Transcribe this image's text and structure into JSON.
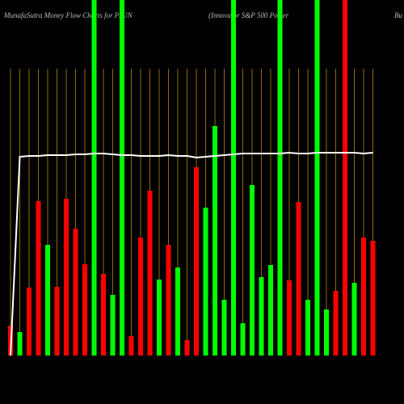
{
  "chart_data": {
    "type": "bar",
    "title": "MunafaSutra  Money Flow  Charts for PJUN",
    "subtitle": "(Innovator S&P 500  Power",
    "corner_text": "Bu",
    "categories": [
      null,
      null,
      null,
      null,
      null,
      null,
      null,
      null,
      null,
      null,
      null,
      null,
      null,
      null,
      null,
      null,
      null,
      null,
      null,
      null,
      null,
      null,
      null,
      null,
      null,
      null,
      null,
      null,
      null,
      null,
      null,
      null,
      null,
      null,
      null,
      null,
      null,
      null,
      null,
      null
    ],
    "values": [
      37,
      29,
      84,
      191,
      137,
      85,
      194,
      157,
      113,
      440,
      101,
      75,
      440,
      24,
      146,
      204,
      94,
      137,
      109,
      19,
      233,
      183,
      284,
      69,
      440,
      40,
      211,
      97,
      112,
      440,
      93,
      190,
      69,
      440,
      57,
      80,
      440,
      90,
      146,
      142
    ],
    "colors": [
      "#ff0000",
      "#00ff00",
      "#ff0000",
      "#ff0000",
      "#00ff00",
      "#ff0000",
      "#ff0000",
      "#ff0000",
      "#ff0000",
      "#00ff00",
      "#ff0000",
      "#00ff00",
      "#00ff00",
      "#ff0000",
      "#ff0000",
      "#ff0000",
      "#00ff00",
      "#ff0000",
      "#00ff00",
      "#ff0000",
      "#ff0000",
      "#00ff00",
      "#00ff00",
      "#00ff00",
      "#00ff00",
      "#00ff00",
      "#00ff00",
      "#00ff00",
      "#00ff00",
      "#00ff00",
      "#ff0000",
      "#ff0000",
      "#00ff00",
      "#00ff00",
      "#00ff00",
      "#ff0000",
      "#ff0000",
      "#00ff00",
      "#ff0000",
      "#ff0000"
    ],
    "line": {
      "color": "#ffffff",
      "values": [
        0,
        246,
        247,
        247,
        248,
        248,
        248,
        249,
        249,
        250,
        250,
        249,
        248,
        248,
        247,
        247,
        247,
        248,
        247,
        247,
        245,
        246,
        247,
        248,
        249,
        250,
        250,
        250,
        250,
        250,
        251,
        250,
        250,
        251,
        251,
        251,
        251,
        251,
        250,
        251
      ]
    },
    "ylim": [
      0,
      440
    ],
    "grid_color": "#b8860b"
  }
}
